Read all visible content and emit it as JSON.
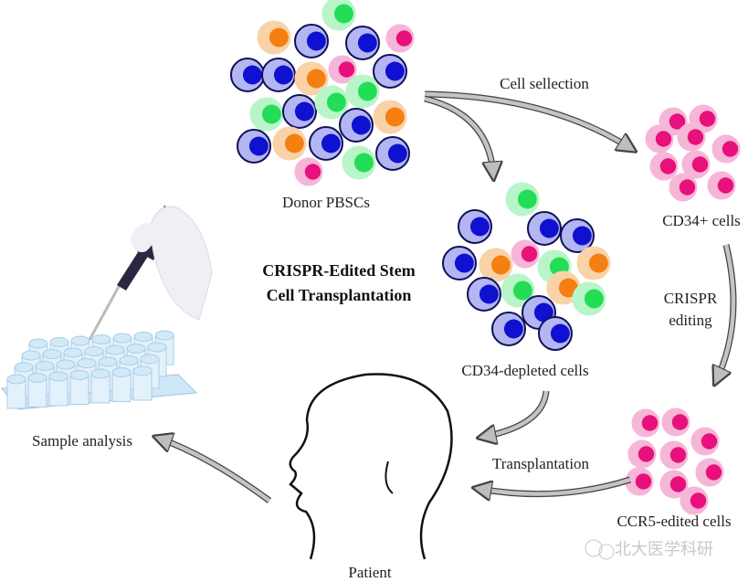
{
  "title": {
    "line1": "CRISPR-Edited Stem",
    "line2": "Cell Transplantation"
  },
  "labels": {
    "donor": "Donor PBSCs",
    "cell_selection": "Cell sellection",
    "cd34_plus": "CD34+ cells",
    "crispr_line1": "CRISPR",
    "crispr_line2": "editing",
    "cd34_depleted": "CD34-depleted cells",
    "ccr5_edited": "CCR5-edited cells",
    "transplantation": "Transplantation",
    "patient": "Patient",
    "sample_analysis": "Sample analysis"
  },
  "watermark": "北大医学科研",
  "colors": {
    "blue": {
      "outer": "#b3b6f0",
      "inner": "#1010d0",
      "ring": "#10105a"
    },
    "green": {
      "outer": "#b8f5c8",
      "inner": "#22dd55"
    },
    "orange": {
      "outer": "#f9d2a8",
      "inner": "#f57f10"
    },
    "pink": {
      "outer": "#f6b6d8",
      "inner": "#e8107a"
    },
    "arrow": "#9a9a9a"
  }
}
